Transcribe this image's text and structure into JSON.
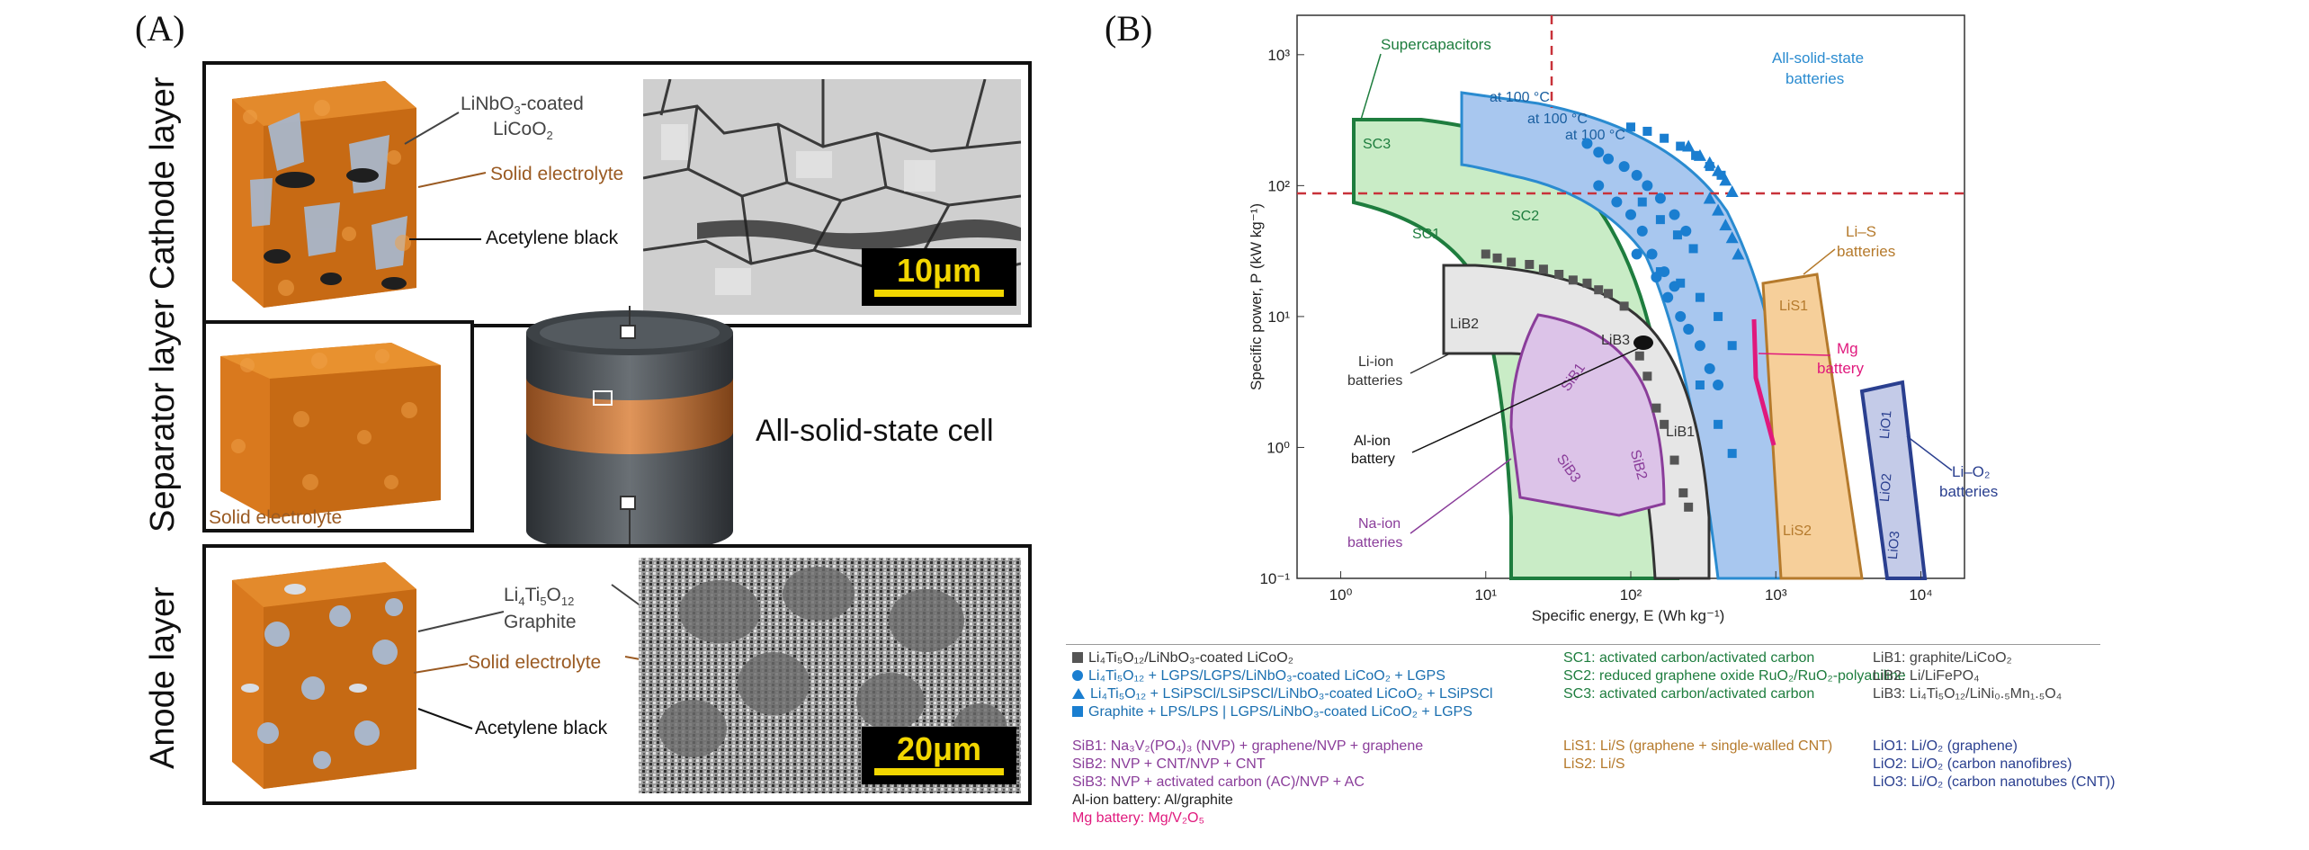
{
  "panelA": {
    "letter": "(A)",
    "cathode": {
      "side_label": "Cathode layer",
      "lnb_line1": "LiNbO",
      "lnb_sub": "3",
      "lnb_line1_tail": "-coated",
      "lnb_line2": "LiCoO",
      "lnb_line2_sub": "2",
      "solid_electrolyte": "Solid electrolyte",
      "acetylene_black": "Acetylene black",
      "scale_bar": "10μm"
    },
    "separator": {
      "side_label": "Separator layer",
      "solid_electrolyte": "Solid electrolyte"
    },
    "cell_label": "All-solid-state cell",
    "anode": {
      "side_label": "Anode layer",
      "lto_main": "Li",
      "lto_sub1": "4",
      "lto_mid": "Ti",
      "lto_sub2": "5",
      "lto_end": "O",
      "lto_sub3": "12",
      "graphite": "Graphite",
      "solid_electrolyte": "Solid electrolyte",
      "acetylene_black": "Acetylene black",
      "scale_bar": "20μm"
    }
  },
  "panelB": {
    "letter": "(B)",
    "colors": {
      "supercap": "#1e7d3e",
      "allsolid": "#2a8bd0",
      "liion": "#555555",
      "naion": "#8a3d9a",
      "lis": "#b57a2c",
      "lio2": "#2a3f8f",
      "mg": "#e0197d"
    },
    "chart_data": {
      "type": "scatter",
      "xlabel": "Specific energy, E (Wh kg⁻¹)",
      "ylabel": "Specific power, P (kW kg⁻¹)",
      "x_scale": "log",
      "y_scale": "log",
      "xlim": [
        0.5,
        20000
      ],
      "ylim": [
        0.1,
        2000
      ],
      "x_ticks": [
        "10⁰",
        "10¹",
        "10²",
        "10³",
        "10⁴"
      ],
      "y_ticks": [
        "10⁻¹",
        "10⁰",
        "10¹",
        "10²",
        "10³"
      ],
      "region_labels": {
        "supercapacitors": "Supercapacitors",
        "all_solid_state": "All-solid-state",
        "batteries": "batteries",
        "at100_a": "at 100 °C",
        "at100_b": "at 100 °C",
        "at100_c": "at 100 °C",
        "sc3": "SC3",
        "sc2": "SC2",
        "sc1": "SC1",
        "lis": "Li–S",
        "lis_batt": "batteries",
        "lis1": "LiS1",
        "lis2": "LiS2",
        "lib2": "LiB2",
        "lib3": "LiB3",
        "lib1": "LiB1",
        "sib1": "SiB1",
        "sib2": "SiB2",
        "sib3": "SiB3",
        "liion": "Li-ion",
        "liion_batt": "batteries",
        "alion": "Al-ion",
        "alion_batt": "battery",
        "naion": "Na-ion",
        "naion_batt": "batteries",
        "mg": "Mg",
        "mg_batt": "battery",
        "lio1": "LiO1",
        "lio2": "LiO2",
        "lio3": "LiO3",
        "lio2_name": "Li–O₂",
        "lio2_batt": "batteries"
      },
      "series": [
        {
          "name": "Li₄Ti₅O₁₂/LiNbO₃-coated LiCoO₂",
          "marker": "square-gray",
          "points": [
            [
              10,
              30
            ],
            [
              12,
              28
            ],
            [
              15,
              26
            ],
            [
              20,
              25
            ],
            [
              25,
              23
            ],
            [
              32,
              21
            ],
            [
              40,
              19
            ],
            [
              50,
              18
            ],
            [
              60,
              16
            ],
            [
              70,
              15
            ],
            [
              90,
              12
            ],
            [
              115,
              5
            ],
            [
              130,
              3.5
            ],
            [
              150,
              2
            ],
            [
              170,
              1.5
            ],
            [
              200,
              0.8
            ],
            [
              230,
              0.45
            ],
            [
              250,
              0.35
            ]
          ]
        },
        {
          "name": "Li₄Ti₅O₁₂ + LGPS/LGPS/LiNbO₃-coated LiCoO₂ + LGPS",
          "marker": "circle-blue",
          "points": [
            [
              50,
              210
            ],
            [
              60,
              180
            ],
            [
              70,
              160
            ],
            [
              90,
              140
            ],
            [
              110,
              120
            ],
            [
              130,
              100
            ],
            [
              160,
              80
            ],
            [
              200,
              60
            ],
            [
              240,
              45
            ],
            [
              60,
              100
            ],
            [
              80,
              75
            ],
            [
              100,
              60
            ],
            [
              120,
              45
            ],
            [
              140,
              30
            ],
            [
              170,
              22
            ],
            [
              200,
              17
            ],
            [
              110,
              30
            ],
            [
              150,
              20
            ],
            [
              180,
              14
            ],
            [
              220,
              10
            ],
            [
              250,
              8
            ],
            [
              300,
              6
            ],
            [
              350,
              4
            ],
            [
              400,
              3
            ]
          ]
        },
        {
          "name": "Li₄Ti₅O₁₂ + LSiPSCl/LSiPSCl/LiNbO₃-coated LiCoO₂ + LSiPSCl",
          "marker": "triangle-blue",
          "points": [
            [
              250,
              200
            ],
            [
              300,
              170
            ],
            [
              350,
              150
            ],
            [
              400,
              130
            ],
            [
              450,
              110
            ],
            [
              500,
              90
            ],
            [
              350,
              80
            ],
            [
              400,
              65
            ],
            [
              450,
              50
            ],
            [
              500,
              40
            ],
            [
              550,
              30
            ]
          ]
        },
        {
          "name": "Graphite + LPS/LPS | LGPS/LiNbO₃-coated LiCoO₂ + LGPS",
          "marker": "square-blue",
          "points": [
            [
              100,
              280
            ],
            [
              130,
              260
            ],
            [
              170,
              230
            ],
            [
              220,
              200
            ],
            [
              280,
              170
            ],
            [
              350,
              140
            ],
            [
              420,
              120
            ],
            [
              120,
              75
            ],
            [
              160,
              55
            ],
            [
              210,
              42
            ],
            [
              270,
              33
            ],
            [
              160,
              22
            ],
            [
              220,
              18
            ],
            [
              300,
              14
            ],
            [
              400,
              10
            ],
            [
              500,
              6
            ],
            [
              300,
              3
            ],
            [
              400,
              1.5
            ],
            [
              500,
              0.9
            ]
          ]
        }
      ]
    },
    "legend": {
      "col1": [
        "Li₄Ti₅O₁₂/LiNbO₃-coated LiCoO₂",
        "Li₄Ti₅O₁₂ + LGPS/LGPS/LiNbO₃-coated LiCoO₂ + LGPS",
        "Li₄Ti₅O₁₂ + LSiPSCl/LSiPSCl/LiNbO₃-coated LiCoO₂ + LSiPSCl",
        "Graphite + LPS/LPS | LGPS/LiNbO₃-coated LiCoO₂ + LGPS"
      ],
      "col2": [
        "SC1: activated carbon/activated carbon",
        "SC2: reduced graphene oxide RuO₂/RuO₂-polyaniline",
        "SC3: activated carbon/activated carbon"
      ],
      "col3": [
        "LiB1: graphite/LiCoO₂",
        "LiB2: Li/LiFePO₄",
        "LiB3: Li₄Ti₅O₁₂/LiNi₀.₅Mn₁.₅O₄"
      ],
      "sib": [
        "SiB1: Na₃V₂(PO₄)₃ (NVP) + graphene/NVP + graphene",
        "SiB2: NVP + CNT/NVP + CNT",
        "SiB3: NVP + activated carbon (AC)/NVP + AC"
      ],
      "al": "Al-ion battery: Al/graphite",
      "mg": "Mg battery: Mg/V₂O₅",
      "lis": [
        "LiS1: Li/S (graphene + single-walled CNT)",
        "LiS2: Li/S"
      ],
      "lio": [
        "LiO1: Li/O₂ (graphene)",
        "LiO2: Li/O₂ (carbon nanofibres)",
        "LiO3: Li/O₂ (carbon nanotubes (CNT))"
      ]
    }
  }
}
